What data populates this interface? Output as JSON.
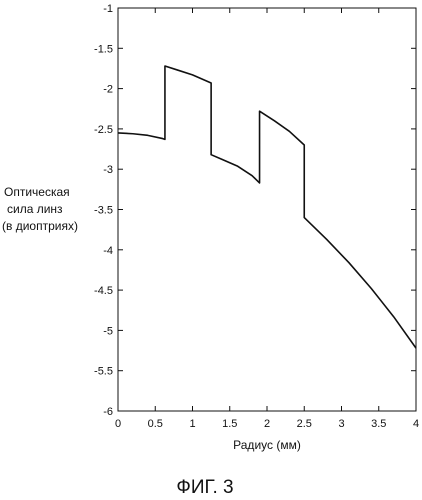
{
  "chart_data": {
    "type": "line",
    "title": "",
    "xlabel": "Радиус (мм)",
    "ylabel_lines": [
      "Оптическая",
      "сила линз",
      "(в диоптриях)"
    ],
    "xlim": [
      0,
      4
    ],
    "ylim": [
      -6,
      -1
    ],
    "x_ticks": [
      0,
      0.5,
      1,
      1.5,
      2,
      2.5,
      3,
      3.5,
      4
    ],
    "x_tick_labels": [
      "0",
      "0.5",
      "1",
      "1.5",
      "2",
      "2.5",
      "3",
      "3.5",
      "4"
    ],
    "y_ticks": [
      -1,
      -1.5,
      -2,
      -2.5,
      -3,
      -3.5,
      -4,
      -4.5,
      -5,
      -5.5,
      -6
    ],
    "y_tick_labels": [
      "-1",
      "-1.5",
      "-2",
      "-2.5",
      "-3",
      "-3.5",
      "-4",
      "-4.5",
      "-5",
      "-5.5",
      "-6"
    ],
    "grid": false,
    "series": [
      {
        "x": [
          0,
          0.2,
          0.4,
          0.6,
          0.63,
          0.63,
          0.8,
          1.0,
          1.25,
          1.25,
          1.4,
          1.6,
          1.8,
          1.9,
          1.9,
          2.1,
          2.3,
          2.5,
          2.5,
          2.8,
          3.1,
          3.4,
          3.7,
          4.0
        ],
        "y": [
          -2.55,
          -2.56,
          -2.58,
          -2.62,
          -2.63,
          -1.72,
          -1.77,
          -1.83,
          -1.93,
          -2.82,
          -2.88,
          -2.96,
          -3.08,
          -3.17,
          -2.28,
          -2.4,
          -2.53,
          -2.7,
          -3.6,
          -3.87,
          -4.16,
          -4.48,
          -4.83,
          -5.22
        ]
      }
    ],
    "caption": "ФИГ. 3"
  }
}
